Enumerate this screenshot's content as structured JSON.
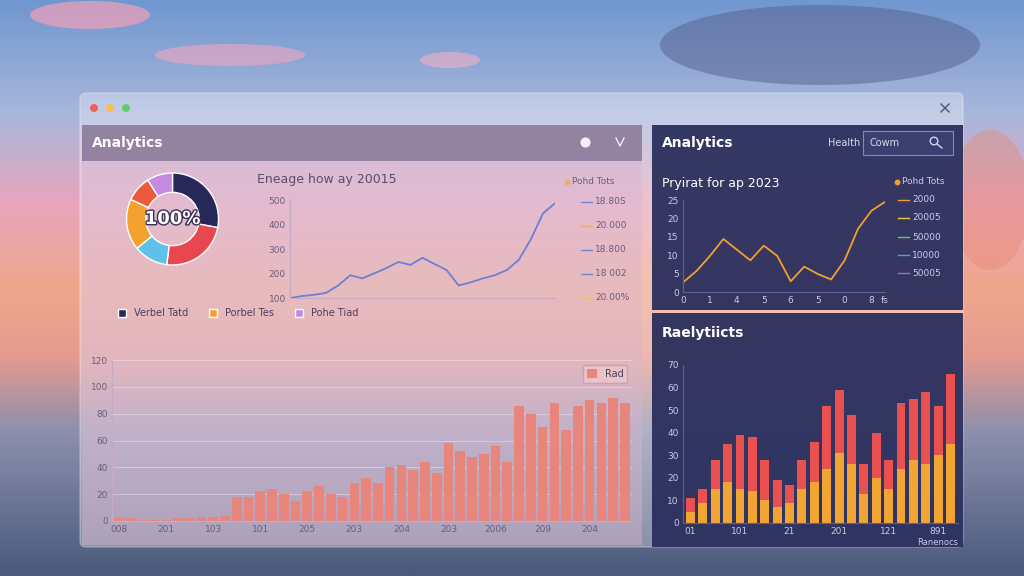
{
  "panels": [
    {
      "title": "Analytics"
    },
    {
      "title": "Analytics",
      "texts": [
        "Health",
        "Cowm"
      ]
    }
  ],
  "chart_data": [
    {
      "type": "pie",
      "categories": [
        "Verbel Tatd",
        null,
        null,
        "Porbel Tes",
        null,
        "Pohe Tiad"
      ],
      "values": [
        28,
        24,
        12,
        18,
        9,
        9
      ],
      "colors": [
        "#27285a",
        "#e8474f",
        "#5fc1ea",
        "#f3a12f",
        "#ec5a3e",
        "#c58ae0"
      ],
      "legend": "upper left",
      "annotations": [
        "100%"
      ]
    },
    {
      "type": "line",
      "title": "Eneage how ay 20015",
      "values": [
        100,
        108,
        113,
        121,
        151,
        193,
        180,
        201,
        222,
        247,
        235,
        264,
        239,
        214,
        151,
        164,
        180,
        193,
        214,
        256,
        340,
        445,
        487
      ],
      "color": "#6d7fd6",
      "ylim": [
        100,
        500
      ],
      "yticks": [
        100,
        200,
        300,
        400,
        500
      ],
      "tick_labels": "y",
      "annotations": [
        "Pohd Tots",
        "18.80S",
        "20.000",
        "18.800",
        "18 002",
        "20.00%"
      ]
    },
    {
      "type": "bar",
      "categories": [
        "008",
        null,
        null,
        null,
        "201",
        null,
        null,
        null,
        "103",
        null,
        null,
        null,
        "101",
        null,
        null,
        null,
        "205",
        null,
        null,
        null,
        "203",
        null,
        null,
        null,
        "204",
        null,
        null,
        null,
        "203",
        null,
        null,
        null,
        "2006",
        null,
        null,
        null,
        "209",
        null,
        null,
        null,
        "204",
        null,
        null,
        null
      ],
      "series": [
        {
          "name": "Rad",
          "color": "#e8857c",
          "values": [
            2,
            2,
            1,
            1,
            1,
            2,
            2,
            3,
            3,
            4,
            18,
            18,
            22,
            24,
            20,
            15,
            22,
            26,
            20,
            18,
            28,
            32,
            28,
            40,
            42,
            38,
            44,
            36,
            58,
            52,
            48,
            50,
            56,
            44,
            86,
            80,
            70,
            88,
            68,
            86,
            90,
            88,
            92,
            88
          ]
        }
      ],
      "ylim": [
        0,
        120
      ],
      "yticks": [
        0,
        20,
        40,
        60,
        80,
        100,
        120
      ],
      "grid": true,
      "legend": "upper right"
    },
    {
      "type": "line",
      "title": "Pryirat for ap 2023",
      "categories": [
        "0",
        null,
        "1",
        null,
        "4",
        null,
        "5",
        null,
        "6",
        null,
        "5",
        null,
        "0",
        null,
        "8",
        "fs"
      ],
      "values": [
        2.6,
        5.7,
        9.8,
        14.4,
        11.5,
        8.6,
        12.6,
        9.8,
        2.9,
        6.9,
        4.9,
        3.4,
        8.6,
        17.2,
        22.1,
        24.5
      ],
      "color": "#f0a030",
      "ylim": [
        0,
        25
      ],
      "yticks": [
        0,
        5,
        10,
        15,
        20,
        25
      ],
      "annotations": [
        "Pohd Tots",
        "2000",
        "20005",
        "50000",
        "10000",
        "50005"
      ]
    },
    {
      "type": "bar",
      "title": "Raelytiicts",
      "x_label": "Ranenocs",
      "categories": [
        "01",
        null,
        null,
        null,
        "101",
        null,
        null,
        null,
        "21",
        null,
        null,
        null,
        "201",
        null,
        null,
        null,
        "121",
        null,
        null,
        null,
        "891",
        null
      ],
      "stacked": true,
      "series": [
        {
          "color": "#f2a532",
          "values": [
            5,
            9,
            15,
            18,
            15,
            14,
            10,
            7,
            9,
            15,
            18,
            24,
            31,
            26,
            13,
            20,
            15,
            24,
            28,
            26,
            30,
            35
          ]
        },
        {
          "color": "#e8514f",
          "values": [
            6,
            6,
            13,
            17,
            24,
            24,
            18,
            12,
            8,
            13,
            18,
            28,
            28,
            22,
            13,
            20,
            13,
            29,
            27,
            32,
            22,
            31
          ]
        }
      ],
      "ylim": [
        0,
        70
      ],
      "yticks": [
        0,
        10,
        20,
        30,
        40,
        50,
        60,
        70
      ]
    }
  ]
}
